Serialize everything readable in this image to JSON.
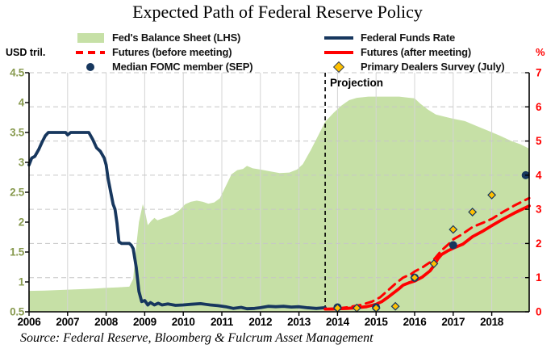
{
  "colors": {
    "area_green": "#c6e0a6",
    "navy": "#17375e",
    "red": "#ff0000",
    "gold": "#ffc000",
    "left_axis_label": "#87994e",
    "grid_vertical": "#d4d4d4",
    "grid_horizontal": "#c6c6c6",
    "axis": "#000000"
  },
  "chart_data": {
    "type": "combo",
    "title": "Expected Path of Federal Reserve Policy",
    "source": "Source: Federal Reserve, Bloomberg & Fulcrum Asset Management",
    "grid": {
      "vertical": "#d4d4d4",
      "horizontal": "#c6c6c6",
      "axis": "#000000"
    },
    "x_axis": {
      "min": 2006,
      "max": 2018.97,
      "ticks": [
        "2006",
        "2007",
        "2008",
        "2009",
        "2010",
        "2011",
        "2012",
        "2013",
        "2014",
        "2015",
        "2016",
        "2017",
        "2018"
      ]
    },
    "left_axis": {
      "unit": "USD tril.",
      "min": 0.5,
      "max": 4.5,
      "ticks": [
        "4.5",
        "4",
        "3.5",
        "3",
        "2.5",
        "2",
        "1.5",
        "1",
        "0.5"
      ],
      "label_color": "#87994e"
    },
    "right_axis": {
      "unit": "%",
      "min": 0,
      "max": 7,
      "ticks": [
        "7",
        "6",
        "5",
        "4",
        "3",
        "2",
        "1",
        "0"
      ],
      "label_color": "#ff0000"
    },
    "projection": {
      "x": 2013.68,
      "label": "Projection"
    },
    "series": [
      {
        "id": "balance-sheet",
        "name": "Fed's Balance Sheet (LHS)",
        "type": "area",
        "axis": "left",
        "color": "#c6e0a6",
        "points": [
          [
            2006.0,
            0.85
          ],
          [
            2006.4,
            0.855
          ],
          [
            2006.8,
            0.865
          ],
          [
            2007.2,
            0.875
          ],
          [
            2007.6,
            0.885
          ],
          [
            2008.0,
            0.9
          ],
          [
            2008.3,
            0.91
          ],
          [
            2008.6,
            0.92
          ],
          [
            2008.7,
            1.05
          ],
          [
            2008.78,
            1.6
          ],
          [
            2008.85,
            2.0
          ],
          [
            2008.95,
            2.3
          ],
          [
            2009.0,
            2.2
          ],
          [
            2009.08,
            1.95
          ],
          [
            2009.17,
            2.02
          ],
          [
            2009.25,
            2.07
          ],
          [
            2009.33,
            2.03
          ],
          [
            2009.45,
            2.06
          ],
          [
            2009.6,
            2.09
          ],
          [
            2009.75,
            2.13
          ],
          [
            2009.9,
            2.2
          ],
          [
            2010.05,
            2.3
          ],
          [
            2010.2,
            2.34
          ],
          [
            2010.35,
            2.36
          ],
          [
            2010.5,
            2.34
          ],
          [
            2010.65,
            2.31
          ],
          [
            2010.8,
            2.33
          ],
          [
            2010.95,
            2.4
          ],
          [
            2011.1,
            2.6
          ],
          [
            2011.25,
            2.8
          ],
          [
            2011.4,
            2.87
          ],
          [
            2011.55,
            2.89
          ],
          [
            2011.65,
            2.94
          ],
          [
            2011.8,
            2.9
          ],
          [
            2012.0,
            2.88
          ],
          [
            2012.25,
            2.85
          ],
          [
            2012.5,
            2.82
          ],
          [
            2012.75,
            2.83
          ],
          [
            2012.95,
            2.88
          ],
          [
            2013.1,
            2.97
          ],
          [
            2013.3,
            3.2
          ],
          [
            2013.5,
            3.45
          ],
          [
            2013.68,
            3.68
          ],
          [
            2013.9,
            3.83
          ],
          [
            2014.1,
            3.95
          ],
          [
            2014.3,
            4.04
          ],
          [
            2014.5,
            4.08
          ],
          [
            2014.8,
            4.1
          ],
          [
            2015.2,
            4.1
          ],
          [
            2015.6,
            4.1
          ],
          [
            2016.0,
            4.07
          ],
          [
            2016.15,
            3.98
          ],
          [
            2016.35,
            3.88
          ],
          [
            2016.55,
            3.8
          ],
          [
            2016.8,
            3.76
          ],
          [
            2017.0,
            3.73
          ],
          [
            2017.3,
            3.69
          ],
          [
            2017.6,
            3.61
          ],
          [
            2017.9,
            3.53
          ],
          [
            2018.2,
            3.45
          ],
          [
            2018.5,
            3.36
          ],
          [
            2018.75,
            3.3
          ],
          [
            2018.97,
            3.23
          ]
        ]
      },
      {
        "id": "fed-funds-rate",
        "name": "Federal Funds Rate",
        "type": "line",
        "axis": "right",
        "color": "#17375e",
        "width": 3.8,
        "points": [
          [
            2006.0,
            4.3
          ],
          [
            2006.07,
            4.5
          ],
          [
            2006.15,
            4.55
          ],
          [
            2006.25,
            4.75
          ],
          [
            2006.33,
            4.95
          ],
          [
            2006.42,
            5.15
          ],
          [
            2006.5,
            5.25
          ],
          [
            2006.95,
            5.25
          ],
          [
            2007.0,
            5.18
          ],
          [
            2007.08,
            5.25
          ],
          [
            2007.55,
            5.25
          ],
          [
            2007.65,
            5.05
          ],
          [
            2007.75,
            4.8
          ],
          [
            2007.85,
            4.7
          ],
          [
            2007.95,
            4.5
          ],
          [
            2008.0,
            4.3
          ],
          [
            2008.05,
            3.9
          ],
          [
            2008.12,
            3.5
          ],
          [
            2008.18,
            3.15
          ],
          [
            2008.23,
            3.0
          ],
          [
            2008.28,
            2.6
          ],
          [
            2008.33,
            2.05
          ],
          [
            2008.4,
            2.0
          ],
          [
            2008.6,
            2.0
          ],
          [
            2008.65,
            1.95
          ],
          [
            2008.7,
            1.85
          ],
          [
            2008.78,
            1.3
          ],
          [
            2008.85,
            0.6
          ],
          [
            2008.92,
            0.3
          ],
          [
            2009.0,
            0.33
          ],
          [
            2009.08,
            0.2
          ],
          [
            2009.15,
            0.27
          ],
          [
            2009.25,
            0.2
          ],
          [
            2009.35,
            0.25
          ],
          [
            2009.45,
            0.2
          ],
          [
            2009.6,
            0.23
          ],
          [
            2009.8,
            0.19
          ],
          [
            2010.0,
            0.2
          ],
          [
            2010.2,
            0.22
          ],
          [
            2010.45,
            0.24
          ],
          [
            2010.7,
            0.2
          ],
          [
            2010.9,
            0.18
          ],
          [
            2011.1,
            0.15
          ],
          [
            2011.3,
            0.1
          ],
          [
            2011.5,
            0.13
          ],
          [
            2011.65,
            0.09
          ],
          [
            2011.85,
            0.1
          ],
          [
            2012.0,
            0.12
          ],
          [
            2012.2,
            0.16
          ],
          [
            2012.4,
            0.15
          ],
          [
            2012.6,
            0.16
          ],
          [
            2012.8,
            0.14
          ],
          [
            2013.0,
            0.15
          ],
          [
            2013.2,
            0.12
          ],
          [
            2013.45,
            0.1
          ],
          [
            2013.68,
            0.12
          ]
        ]
      },
      {
        "id": "futures-before",
        "name": "Futures (before meeting)",
        "type": "line",
        "axis": "right",
        "color": "#ff0000",
        "width": 3,
        "dash": "10 7",
        "points": [
          [
            2013.68,
            0.08
          ],
          [
            2014.0,
            0.1
          ],
          [
            2014.3,
            0.14
          ],
          [
            2014.6,
            0.2
          ],
          [
            2014.9,
            0.3
          ],
          [
            2015.1,
            0.42
          ],
          [
            2015.3,
            0.62
          ],
          [
            2015.5,
            0.82
          ],
          [
            2015.7,
            1.0
          ],
          [
            2015.9,
            1.1
          ],
          [
            2016.0,
            1.18
          ],
          [
            2016.2,
            1.3
          ],
          [
            2016.4,
            1.45
          ],
          [
            2016.5,
            1.53
          ],
          [
            2016.7,
            1.8
          ],
          [
            2016.9,
            2.0
          ],
          [
            2017.0,
            2.12
          ],
          [
            2017.2,
            2.25
          ],
          [
            2017.5,
            2.48
          ],
          [
            2017.8,
            2.62
          ],
          [
            2018.0,
            2.72
          ],
          [
            2018.3,
            2.93
          ],
          [
            2018.6,
            3.12
          ],
          [
            2018.97,
            3.33
          ]
        ]
      },
      {
        "id": "futures-after",
        "name": "Futures (after meeting)",
        "type": "line",
        "axis": "right",
        "color": "#ff0000",
        "width": 3.8,
        "points": [
          [
            2013.68,
            0.08
          ],
          [
            2013.85,
            0.08
          ],
          [
            2014.0,
            0.09
          ],
          [
            2014.25,
            0.1
          ],
          [
            2014.5,
            0.12
          ],
          [
            2014.75,
            0.15
          ],
          [
            2015.0,
            0.22
          ],
          [
            2015.15,
            0.3
          ],
          [
            2015.3,
            0.42
          ],
          [
            2015.45,
            0.55
          ],
          [
            2015.6,
            0.68
          ],
          [
            2015.7,
            0.78
          ],
          [
            2015.85,
            0.85
          ],
          [
            2016.0,
            0.9
          ],
          [
            2016.2,
            1.02
          ],
          [
            2016.4,
            1.2
          ],
          [
            2016.5,
            1.35
          ],
          [
            2016.6,
            1.55
          ],
          [
            2016.7,
            1.68
          ],
          [
            2016.85,
            1.78
          ],
          [
            2017.0,
            1.86
          ],
          [
            2017.25,
            1.98
          ],
          [
            2017.5,
            2.2
          ],
          [
            2017.75,
            2.35
          ],
          [
            2018.0,
            2.52
          ],
          [
            2018.3,
            2.72
          ],
          [
            2018.6,
            2.9
          ],
          [
            2018.97,
            3.1
          ]
        ]
      },
      {
        "id": "fomc-median",
        "name": "Median FOMC member (SEP)",
        "type": "scatter",
        "marker": "circle",
        "axis": "right",
        "color": "#17375e",
        "points": [
          [
            2014.0,
            0.13
          ],
          [
            2015.0,
            0.13
          ],
          [
            2016.0,
            1.0
          ],
          [
            2017.0,
            1.95
          ],
          [
            2018.88,
            4.0
          ]
        ]
      },
      {
        "id": "dealers-survey",
        "name": "Primary Dealers Survey (July)",
        "type": "scatter",
        "marker": "diamond",
        "axis": "right",
        "color": "#ffc000",
        "stroke": "#17375e",
        "points": [
          [
            2014.0,
            0.11
          ],
          [
            2014.5,
            0.11
          ],
          [
            2015.0,
            0.11
          ],
          [
            2015.5,
            0.16
          ],
          [
            2016.0,
            1.0
          ],
          [
            2016.5,
            1.41
          ],
          [
            2017.0,
            2.41
          ],
          [
            2017.5,
            2.92
          ],
          [
            2018.0,
            3.42
          ]
        ]
      }
    ]
  }
}
